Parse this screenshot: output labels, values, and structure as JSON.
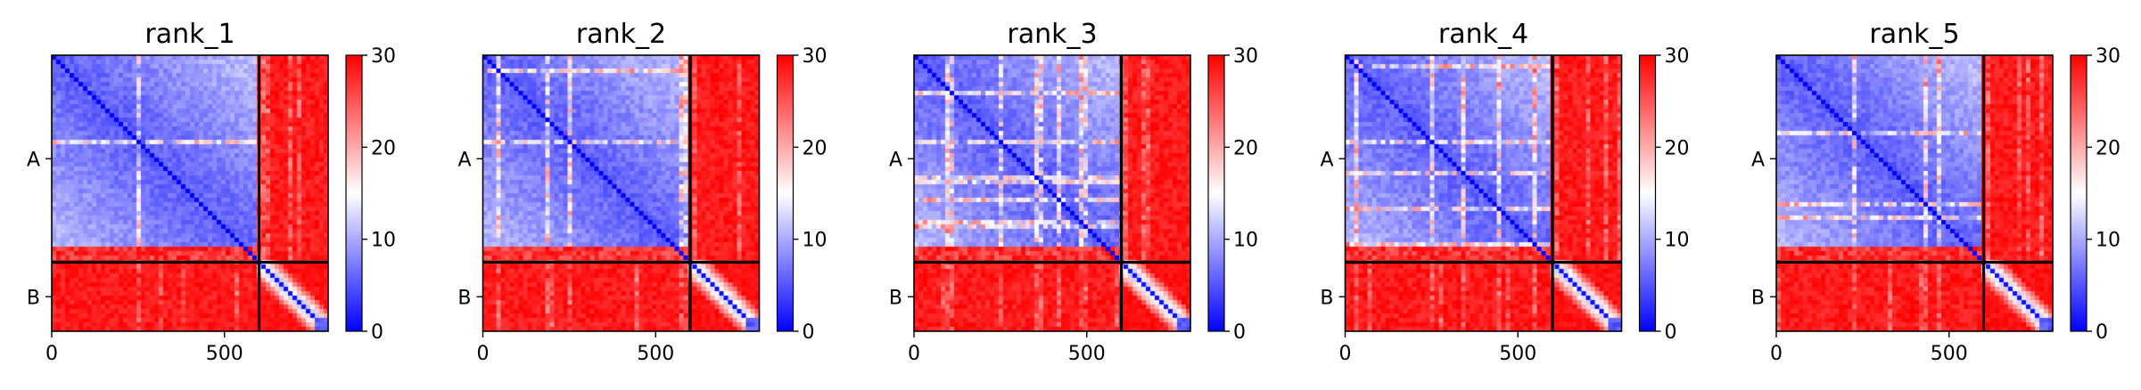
{
  "chart_data": [
    {
      "type": "heatmap",
      "title": "rank_1",
      "x_ticks": [
        "0",
        "500"
      ],
      "y_ticks": [
        "A",
        "B"
      ],
      "colorbar_ticks": [
        "0",
        "10",
        "20",
        "30"
      ],
      "value_range": [
        0,
        30
      ],
      "colormap": [
        "#0000ff",
        "#ffffff",
        "#ff0000"
      ],
      "chain_break": 600,
      "total_length": 800,
      "chains": [
        {
          "label": "A",
          "start": 0,
          "end": 600
        },
        {
          "label": "B",
          "start": 600,
          "end": 800
        }
      ]
    },
    {
      "type": "heatmap",
      "title": "rank_2",
      "x_ticks": [
        "0",
        "500"
      ],
      "y_ticks": [
        "A",
        "B"
      ],
      "colorbar_ticks": [
        "0",
        "10",
        "20",
        "30"
      ],
      "value_range": [
        0,
        30
      ],
      "colormap": [
        "#0000ff",
        "#ffffff",
        "#ff0000"
      ],
      "chain_break": 600,
      "total_length": 800,
      "chains": [
        {
          "label": "A",
          "start": 0,
          "end": 600
        },
        {
          "label": "B",
          "start": 600,
          "end": 800
        }
      ]
    },
    {
      "type": "heatmap",
      "title": "rank_3",
      "x_ticks": [
        "0",
        "500"
      ],
      "y_ticks": [
        "A",
        "B"
      ],
      "colorbar_ticks": [
        "0",
        "10",
        "20",
        "30"
      ],
      "value_range": [
        0,
        30
      ],
      "colormap": [
        "#0000ff",
        "#ffffff",
        "#ff0000"
      ],
      "chain_break": 600,
      "total_length": 800,
      "chains": [
        {
          "label": "A",
          "start": 0,
          "end": 600
        },
        {
          "label": "B",
          "start": 600,
          "end": 800
        }
      ]
    },
    {
      "type": "heatmap",
      "title": "rank_4",
      "x_ticks": [
        "0",
        "500"
      ],
      "y_ticks": [
        "A",
        "B"
      ],
      "colorbar_ticks": [
        "0",
        "10",
        "20",
        "30"
      ],
      "value_range": [
        0,
        30
      ],
      "colormap": [
        "#0000ff",
        "#ffffff",
        "#ff0000"
      ],
      "chain_break": 600,
      "total_length": 800,
      "chains": [
        {
          "label": "A",
          "start": 0,
          "end": 600
        },
        {
          "label": "B",
          "start": 600,
          "end": 800
        }
      ]
    },
    {
      "type": "heatmap",
      "title": "rank_5",
      "x_ticks": [
        "0",
        "500"
      ],
      "y_ticks": [
        "A",
        "B"
      ],
      "colorbar_ticks": [
        "0",
        "10",
        "20",
        "30"
      ],
      "value_range": [
        0,
        30
      ],
      "colormap": [
        "#0000ff",
        "#ffffff",
        "#ff0000"
      ],
      "chain_break": 600,
      "total_length": 800,
      "chains": [
        {
          "label": "A",
          "start": 0,
          "end": 600
        },
        {
          "label": "B",
          "start": 600,
          "end": 800
        }
      ]
    }
  ]
}
